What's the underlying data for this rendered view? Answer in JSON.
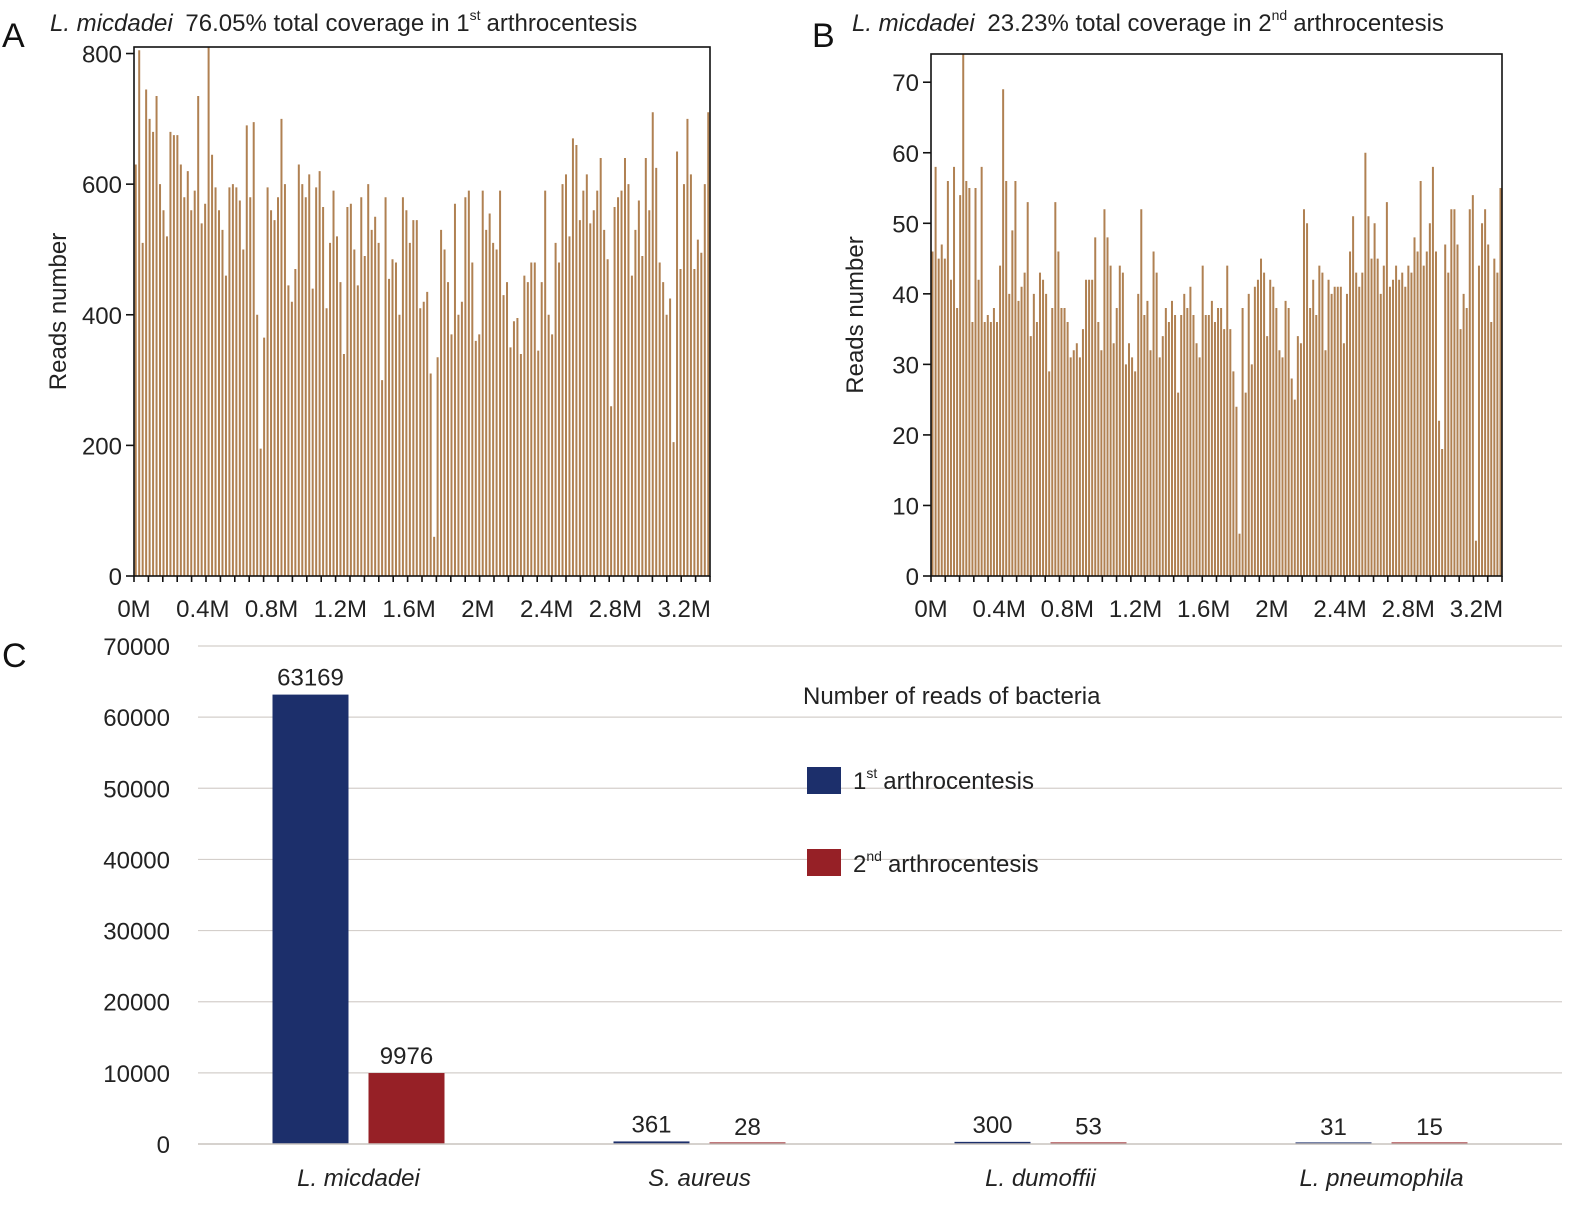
{
  "panels": {
    "a": {
      "letter": "A",
      "species": "L. micdadei",
      "title_rest": "76.05% total coverage in 1",
      "title_sup": "st",
      "title_end": "arthrocentesis"
    },
    "b": {
      "letter": "B",
      "species": "L. micdadei",
      "title_rest": "23.23% total coverage in 2",
      "title_sup": "nd",
      "title_end": "arthrocentesis"
    },
    "c": {
      "letter": "C",
      "title": "Number of reads of bacteria"
    }
  },
  "chart_data": [
    {
      "id": "A",
      "type": "bar",
      "ylabel": "Reads number",
      "xlabel": "",
      "ylim": [
        0,
        810
      ],
      "xlim": [
        0,
        3.35
      ],
      "yticks": [
        0,
        200,
        400,
        600,
        800
      ],
      "xticks": [
        {
          "value": 0,
          "label": "0M"
        },
        {
          "value": 0.4,
          "label": "0.4M"
        },
        {
          "value": 0.8,
          "label": "0.8M"
        },
        {
          "value": 1.2,
          "label": "1.2M"
        },
        {
          "value": 1.6,
          "label": "1.6M"
        },
        {
          "value": 2.0,
          "label": "2M"
        },
        {
          "value": 2.4,
          "label": "2.4M"
        },
        {
          "value": 2.8,
          "label": "2.8M"
        },
        {
          "value": 3.2,
          "label": "3.2M"
        }
      ],
      "color": "#b08152",
      "values": [
        630,
        805,
        510,
        745,
        700,
        680,
        735,
        600,
        560,
        520,
        680,
        675,
        675,
        630,
        580,
        620,
        560,
        590,
        735,
        540,
        570,
        810,
        645,
        595,
        560,
        530,
        460,
        595,
        600,
        595,
        575,
        500,
        690,
        580,
        695,
        400,
        195,
        365,
        595,
        560,
        545,
        580,
        700,
        600,
        445,
        420,
        470,
        630,
        600,
        580,
        615,
        440,
        595,
        620,
        565,
        410,
        510,
        590,
        520,
        450,
        340,
        565,
        570,
        500,
        445,
        580,
        490,
        600,
        530,
        550,
        510,
        300,
        580,
        455,
        485,
        480,
        400,
        580,
        560,
        510,
        545,
        545,
        410,
        420,
        435,
        310,
        60,
        335,
        530,
        500,
        450,
        370,
        570,
        400,
        420,
        580,
        590,
        480,
        360,
        370,
        590,
        530,
        555,
        510,
        500,
        590,
        430,
        450,
        350,
        390,
        395,
        340,
        460,
        450,
        480,
        480,
        345,
        450,
        590,
        400,
        370,
        510,
        480,
        600,
        615,
        520,
        670,
        660,
        545,
        590,
        615,
        540,
        560,
        590,
        640,
        530,
        485,
        260,
        565,
        580,
        590,
        640,
        600,
        460,
        530,
        575,
        490,
        640,
        560,
        710,
        625,
        480,
        450,
        400,
        425,
        205,
        650,
        470,
        600,
        700,
        615,
        470,
        515,
        495,
        600,
        710
      ]
    },
    {
      "id": "B",
      "type": "bar",
      "ylabel": "Reads number",
      "xlabel": "",
      "ylim": [
        0,
        74
      ],
      "xlim": [
        0,
        3.35
      ],
      "yticks": [
        0,
        10,
        20,
        30,
        40,
        50,
        60,
        70
      ],
      "xticks": [
        {
          "value": 0,
          "label": "0M"
        },
        {
          "value": 0.4,
          "label": "0.4M"
        },
        {
          "value": 0.8,
          "label": "0.8M"
        },
        {
          "value": 1.2,
          "label": "1.2M"
        },
        {
          "value": 1.6,
          "label": "1.6M"
        },
        {
          "value": 2.0,
          "label": "2M"
        },
        {
          "value": 2.4,
          "label": "2.4M"
        },
        {
          "value": 2.8,
          "label": "2.8M"
        },
        {
          "value": 3.2,
          "label": "3.2M"
        }
      ],
      "color": "#b08152",
      "values": [
        46,
        58,
        45,
        47,
        45,
        56,
        42,
        58,
        38,
        54,
        74,
        56,
        55,
        36,
        55,
        42,
        58,
        36,
        37,
        36,
        38,
        36,
        44,
        69,
        56,
        40,
        49,
        56,
        39,
        41,
        43,
        53,
        34,
        40,
        36,
        43,
        42,
        40,
        29,
        38,
        53,
        46,
        38,
        38,
        36,
        31,
        32,
        33,
        31,
        35,
        42,
        42,
        42,
        48,
        36,
        32,
        52,
        48,
        44,
        33,
        38,
        44,
        43,
        30,
        33,
        31,
        29,
        40,
        52,
        37,
        39,
        32,
        46,
        43,
        31,
        34,
        38,
        36,
        39,
        37,
        26,
        37,
        40,
        38,
        41,
        37,
        33,
        31,
        44,
        37,
        37,
        39,
        36,
        38,
        38,
        35,
        44,
        35,
        29,
        24,
        6,
        38,
        26,
        40,
        30,
        41,
        42,
        45,
        43,
        34,
        42,
        41,
        38,
        32,
        31,
        39,
        38,
        28,
        25,
        34,
        33,
        52,
        50,
        38,
        42,
        37,
        44,
        43,
        32,
        42,
        40,
        41,
        41,
        41,
        33,
        40,
        46,
        51,
        43,
        41,
        43,
        60,
        51,
        45,
        50,
        45,
        40,
        44,
        53,
        41,
        42,
        44,
        42,
        43,
        41,
        44,
        43,
        48,
        46,
        56,
        44,
        46,
        50,
        58,
        46,
        22,
        18,
        47,
        43,
        52,
        52,
        47,
        35,
        40,
        38,
        52,
        54,
        5,
        44,
        50,
        52,
        47,
        36,
        45,
        43,
        55
      ]
    },
    {
      "id": "C",
      "type": "bar",
      "title": "Number of reads of bacteria",
      "xlabel": "",
      "ylabel": "",
      "ylim": [
        0,
        70000
      ],
      "yticks": [
        0,
        10000,
        20000,
        30000,
        40000,
        50000,
        60000,
        70000
      ],
      "categories": [
        "L. micdadei",
        "S. aureus",
        "L. dumoffii",
        "L. pneumophila"
      ],
      "series": [
        {
          "name": "1st arthrocentesis",
          "name_base": "1",
          "name_sup": "st",
          "name_rest": "arthrocentesis",
          "color": "#1c2f6b",
          "values": [
            63169,
            361,
            300,
            31
          ]
        },
        {
          "name": "2nd arthrocentesis",
          "name_base": "2",
          "name_sup": "nd",
          "name_rest": "arthrocentesis",
          "color": "#962026",
          "values": [
            9976,
            28,
            53,
            15
          ]
        }
      ],
      "grid": true,
      "legend_position": "top-right"
    }
  ]
}
